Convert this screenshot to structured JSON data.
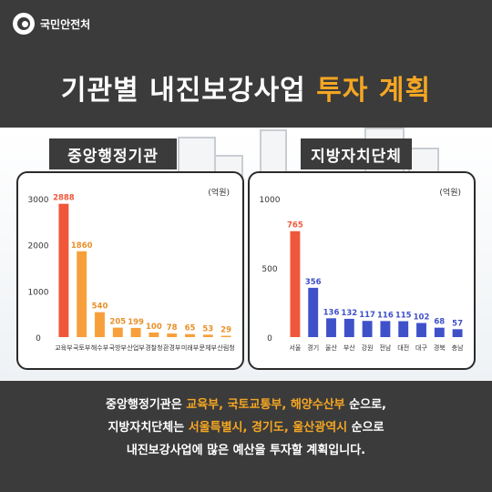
{
  "brand": {
    "name": "국민안전처",
    "icon": "taegeuk-logo-icon"
  },
  "title": {
    "text": "기관별 내진보강사업 ",
    "highlight": "투자 계획"
  },
  "colors": {
    "background": "#3b3b3b",
    "accent": "#f5a623",
    "central_tallest": "#f0573a",
    "central_bars": "#f7a03b",
    "local_tallest": "#f0573a",
    "local_bars": "#3f51c9"
  },
  "chart_data": [
    {
      "type": "bar",
      "title": "중앙행정기관",
      "unit": "(억원)",
      "categories": [
        "교육부",
        "국토부",
        "해수부",
        "국방부",
        "산업부",
        "경찰청",
        "환경부",
        "미래부",
        "문체부",
        "산림청"
      ],
      "values": [
        2888,
        1860,
        540,
        205,
        199,
        100,
        78,
        65,
        53,
        29
      ],
      "yticks": [
        0,
        1000,
        2000,
        3000
      ],
      "ylim": [
        0,
        3000
      ],
      "value_labels": true,
      "grid": false
    },
    {
      "type": "bar",
      "title": "지방자치단체",
      "unit": "(억원)",
      "categories": [
        "서울",
        "경기",
        "울산",
        "부산",
        "강원",
        "전남",
        "대전",
        "대구",
        "경북",
        "충남"
      ],
      "values": [
        765,
        356,
        136,
        132,
        117,
        116,
        115,
        102,
        68,
        57
      ],
      "yticks": [
        0,
        500,
        1000
      ],
      "ylim": [
        0,
        1000
      ],
      "value_labels": true,
      "grid": false
    }
  ],
  "summary": {
    "line1": {
      "a": "중앙행정기관은 ",
      "b": "교육부, 국토교통부, 해양수산부",
      "c": " 순으로,"
    },
    "line2": {
      "a": "지방자치단체는 ",
      "b": "서울특별시, 경기도, 울산광역시",
      "c": " 순으로"
    },
    "line3": "내진보강사업에 많은 예산을 투자할 계획입니다."
  }
}
